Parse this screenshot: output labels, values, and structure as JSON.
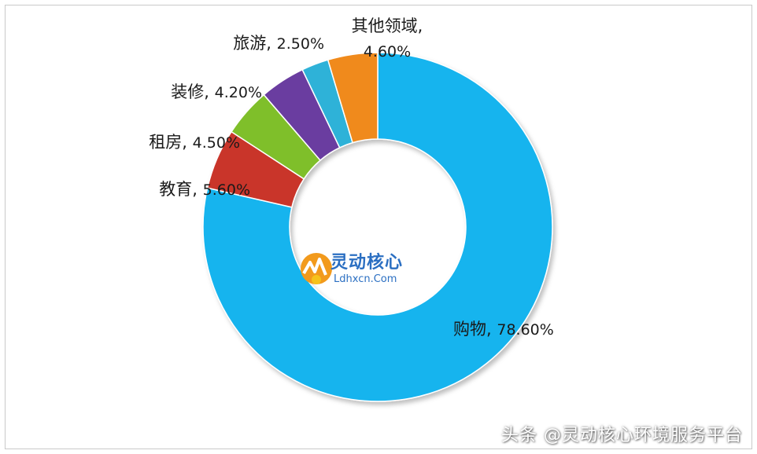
{
  "chart_data": {
    "type": "pie",
    "donut": true,
    "slices": [
      {
        "label": "购物",
        "value": 78.6,
        "value_text": "78.60%",
        "color": "#18b4ee"
      },
      {
        "label": "教育",
        "value": 5.6,
        "value_text": "5.60%",
        "color": "#c9342b"
      },
      {
        "label": "租房",
        "value": 4.5,
        "value_text": "4.50%",
        "color": "#7fbf2a"
      },
      {
        "label": "装修",
        "value": 4.2,
        "value_text": "4.20%",
        "color": "#6a3ea0"
      },
      {
        "label": "旅游",
        "value": 2.5,
        "value_text": "2.50%",
        "color": "#2fb2d8"
      },
      {
        "label": "其他领域",
        "value": 4.6,
        "value_text": "4.60%",
        "color": "#f08a1c"
      }
    ]
  },
  "logo": {
    "name": "灵动核心",
    "domain": "Ldhxcn.Com"
  },
  "watermark": "头条 @灵动核心环境服务平台"
}
